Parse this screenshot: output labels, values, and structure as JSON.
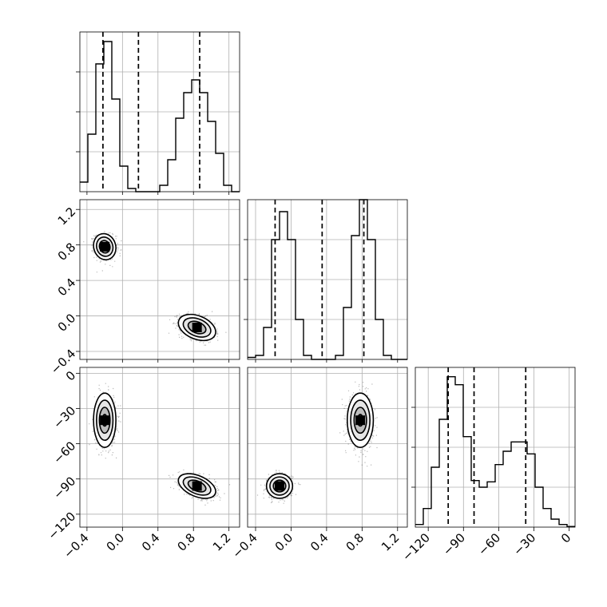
{
  "chart_data": {
    "type": "corner",
    "title": "",
    "grid": true,
    "parameters": [
      {
        "ticks": [
          -0.4,
          0.0,
          0.4,
          0.8,
          1.2
        ],
        "tick_labels": [
          "−0.4",
          "0.0",
          "0.4",
          "0.8",
          "1.2"
        ],
        "range": [
          -0.48,
          1.32
        ],
        "quantiles": [
          -0.22,
          0.18,
          0.87
        ]
      },
      {
        "ticks": [
          -0.4,
          0.0,
          0.4,
          0.8,
          1.2
        ],
        "tick_labels": [
          "−0.4",
          "0.0",
          "0.4",
          "0.8",
          "1.2"
        ],
        "range": [
          -0.49,
          1.31
        ],
        "quantiles": [
          -0.18,
          0.35,
          0.82
        ]
      },
      {
        "ticks": [
          -120,
          -90,
          -60,
          -30,
          0
        ],
        "tick_labels": [
          "−120",
          "−90",
          "−60",
          "−30",
          "0"
        ],
        "range": [
          -131,
          5
        ],
        "quantiles": [
          -103,
          -81,
          -37
        ]
      }
    ],
    "histograms": [
      {
        "bin_start": -0.48,
        "bin_width": 0.09,
        "counts": [
          0.03,
          0.18,
          0.4,
          0.47,
          0.29,
          0.08,
          0.01,
          0,
          0,
          0,
          0.02,
          0.1,
          0.23,
          0.31,
          0.35,
          0.31,
          0.22,
          0.12,
          0.02,
          0
        ],
        "ylim": [
          0,
          0.5
        ]
      },
      {
        "bin_start": -0.49,
        "bin_width": 0.09,
        "counts": [
          0.005,
          0.01,
          0.08,
          0.3,
          0.37,
          0.3,
          0.1,
          0.01,
          0,
          0,
          0,
          0.01,
          0.13,
          0.31,
          0.4,
          0.3,
          0.1,
          0.01,
          0,
          0
        ],
        "ylim": [
          0,
          0.4
        ]
      },
      {
        "bin_start": -131,
        "bin_width": 6.8,
        "counts": [
          0.2,
          1.4,
          4.5,
          8.1,
          11.3,
          10.7,
          6.8,
          3.5,
          3.0,
          3.4,
          4.7,
          5.7,
          6.4,
          6.4,
          5.5,
          3.0,
          1.4,
          0.6,
          0.2,
          0.05
        ],
        "ylim": [
          0,
          12
        ]
      }
    ],
    "clusters": [
      {
        "mean": [
          -0.2,
          0.78,
          -40
        ],
        "sd": [
          0.06,
          0.07,
          11
        ],
        "corr01": -0.1,
        "corr02": 0.0,
        "corr12": 0.0
      },
      {
        "mean": [
          0.84,
          -0.13,
          -96
        ],
        "sd": [
          0.1,
          0.07,
          5
        ],
        "corr01": -0.35,
        "corr02": -0.45,
        "corr12": 0.0
      }
    ]
  }
}
